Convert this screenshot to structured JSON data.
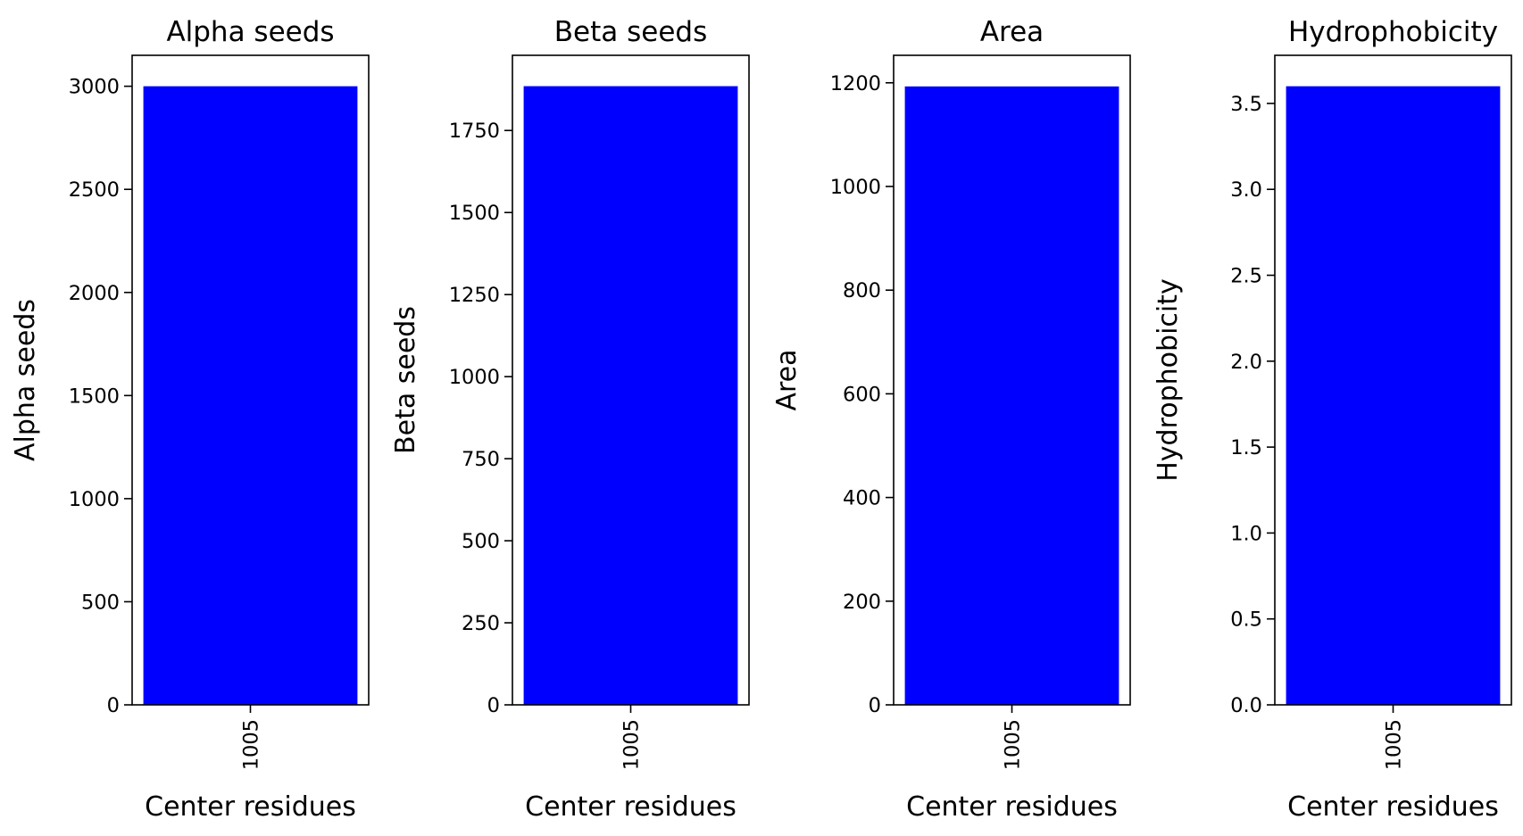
{
  "figure": {
    "background": "#ffffff"
  },
  "chart_data": [
    {
      "type": "bar",
      "title": "Alpha seeds",
      "xlabel": "Center residues",
      "ylabel": "Alpha seeds",
      "categories": [
        "1005"
      ],
      "values": [
        3000
      ],
      "ylim": [
        0,
        3150
      ],
      "yticks": [
        0,
        500,
        1000,
        1500,
        2000,
        2500,
        3000
      ],
      "ytick_labels": [
        "0",
        "500",
        "1000",
        "1500",
        "2000",
        "2500",
        "3000"
      ],
      "bar_color": "#0000ff",
      "grid": false,
      "legend": "none"
    },
    {
      "type": "bar",
      "title": "Beta seeds",
      "xlabel": "Center residues",
      "ylabel": "Beta seeds",
      "categories": [
        "1005"
      ],
      "values": [
        1885
      ],
      "ylim": [
        0,
        1979
      ],
      "yticks": [
        0,
        250,
        500,
        750,
        1000,
        1250,
        1500,
        1750
      ],
      "ytick_labels": [
        "0",
        "250",
        "500",
        "750",
        "1000",
        "1250",
        "1500",
        "1750"
      ],
      "bar_color": "#0000ff",
      "grid": false,
      "legend": "none"
    },
    {
      "type": "bar",
      "title": "Area",
      "xlabel": "Center residues",
      "ylabel": "Area",
      "categories": [
        "1005"
      ],
      "values": [
        1193
      ],
      "ylim": [
        0,
        1253
      ],
      "yticks": [
        0,
        200,
        400,
        600,
        800,
        1000,
        1200
      ],
      "ytick_labels": [
        "0",
        "200",
        "400",
        "600",
        "800",
        "1000",
        "1200"
      ],
      "bar_color": "#0000ff",
      "grid": false,
      "legend": "none"
    },
    {
      "type": "bar",
      "title": "Hydrophobicity",
      "xlabel": "Center residues",
      "ylabel": "Hydrophobicity",
      "categories": [
        "1005"
      ],
      "values": [
        3.6
      ],
      "ylim": [
        0,
        3.78
      ],
      "yticks": [
        0,
        0.5,
        1,
        1.5,
        2,
        2.5,
        3,
        3.5
      ],
      "ytick_labels": [
        "0.0",
        "0.5",
        "1.0",
        "1.5",
        "2.0",
        "2.5",
        "3.0",
        "3.5"
      ],
      "bar_color": "#0000ff",
      "grid": false,
      "legend": "none"
    }
  ]
}
